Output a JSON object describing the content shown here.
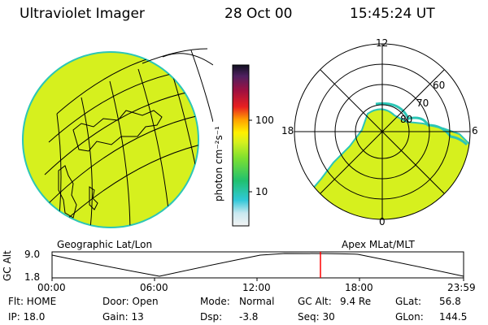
{
  "header": {
    "instrument": "Ultraviolet Imager",
    "date": "28 Oct 00",
    "time": "15:45:24 UT"
  },
  "colorbar": {
    "unit_label": "photon cm⁻²s⁻¹",
    "ticks": [
      "100",
      "10"
    ]
  },
  "left_map": {
    "caption": "Geographic Lat/Lon"
  },
  "polar_plot": {
    "caption": "Apex MLat/MLT",
    "mlt_labels": {
      "top": "12",
      "left": "18",
      "right": "6",
      "bottom": "0"
    },
    "lat_labels": [
      "60",
      "70",
      "80"
    ]
  },
  "altitude_plot": {
    "ylabel": "GC Alt",
    "yticks": [
      "9.0",
      "1.8"
    ],
    "xticks": [
      "00:00",
      "06:00",
      "12:00",
      "18:00",
      "23:59"
    ]
  },
  "info": {
    "row1": {
      "flt": "Flt: HOME",
      "door": "Door: Open",
      "mode_label": "Mode:",
      "mode_value": "Normal",
      "gcalt_label": "GC Alt:",
      "gcalt_value": "9.4 Re",
      "glat_label": "GLat:",
      "glat_value": "56.8"
    },
    "row2": {
      "ip": "IP: 18.0",
      "gain": "Gain: 13",
      "dsp_label": "Dsp:",
      "dsp_value": "-3.8",
      "seq": "Seq: 30",
      "glon_label": "GLon:",
      "glon_value": "144.5"
    }
  },
  "colors": {
    "fill": "#d6f01e",
    "fill_edge": "#2cc6b6",
    "marker": "#ff0000"
  }
}
